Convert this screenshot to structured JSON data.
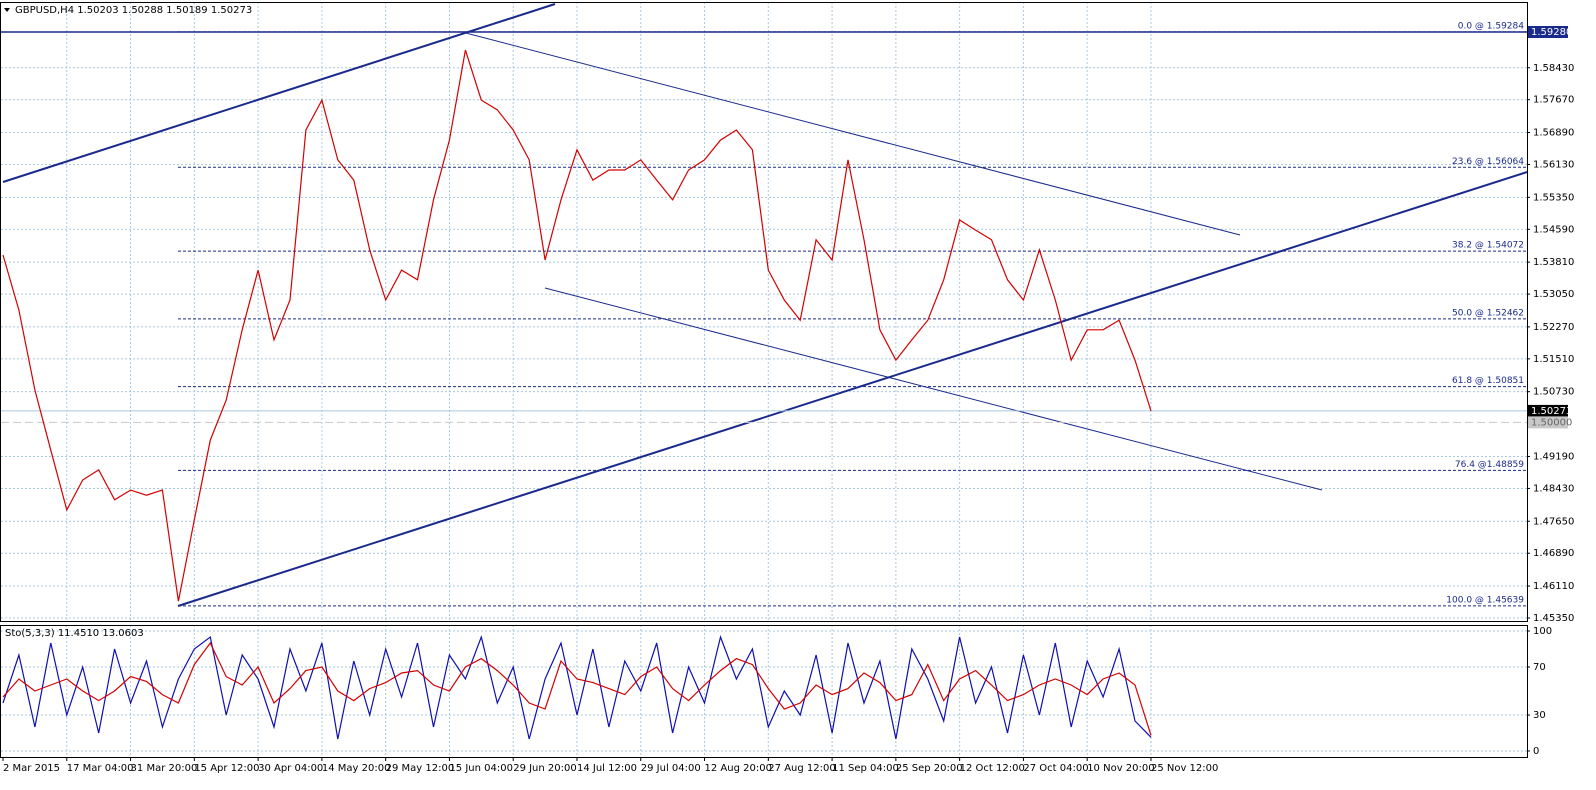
{
  "chart_data": [
    {
      "type": "line",
      "title": "GBPUSD,H4  1.50203 1.50288 1.50189 1.50273",
      "categories": [
        "2 Mar 2015",
        null,
        null,
        null,
        "17 Mar 04:00",
        null,
        null,
        null,
        "31 Mar 20:00",
        null,
        null,
        null,
        "15 Apr 12:00",
        null,
        null,
        null,
        "30 Apr 04:00",
        null,
        null,
        null,
        "14 May 20:00",
        null,
        null,
        null,
        "29 May 12:00",
        null,
        null,
        null,
        "15 Jun 04:00",
        null,
        null,
        null,
        "29 Jun 20:00",
        null,
        null,
        null,
        "14 Jul 12:00",
        null,
        null,
        null,
        "29 Jul 04:00",
        null,
        null,
        null,
        "12 Aug 20:00",
        null,
        null,
        null,
        "27 Aug 12:00",
        null,
        null,
        null,
        "11 Sep 04:00",
        null,
        null,
        null,
        "25 Sep 20:00",
        null,
        null,
        null,
        "12 Oct 12:00",
        null,
        null,
        null,
        "27 Oct 04:00",
        null,
        null,
        null,
        "10 Nov 20:00",
        null,
        null,
        null,
        "25 Nov 12:00"
      ],
      "series": [
        {
          "name": "GBPUSD",
          "color": "#d40000",
          "values": [
            1.5398,
            1.5267,
            1.5077,
            1.4934,
            1.4792,
            1.4863,
            1.4887,
            1.4816,
            1.4839,
            1.4827,
            1.4839,
            1.4575,
            1.4768,
            1.4958,
            1.5053,
            1.522,
            1.5362,
            1.5196,
            1.5291,
            1.5695,
            1.5766,
            1.5624,
            1.5576,
            1.541,
            1.5291,
            1.5362,
            1.5339,
            1.5529,
            1.5671,
            1.5885,
            1.5766,
            1.5743,
            1.5695,
            1.5624,
            1.5386,
            1.5529,
            1.5648,
            1.5576,
            1.56,
            1.56,
            1.5624,
            1.5576,
            1.5529,
            1.56,
            1.5624,
            1.5671,
            1.5695,
            1.5648,
            1.5362,
            1.5291,
            1.5243,
            1.5434,
            1.5386,
            1.5624,
            1.5434,
            1.522,
            1.5148,
            1.5196,
            1.5243,
            1.5339,
            1.5481,
            1.5457,
            1.5434,
            1.5339,
            1.5291,
            1.541,
            1.5291,
            1.5148,
            1.522,
            1.522,
            1.5243,
            1.5148,
            1.5027
          ]
        }
      ],
      "ylim": [
        1.45279,
        1.59993
      ],
      "yticks": [
        {
          "value": 1.4535,
          "label": "1.45350"
        },
        {
          "value": 1.4611,
          "label": "1.46110"
        },
        {
          "value": 1.4689,
          "label": "1.46890"
        },
        {
          "value": 1.4765,
          "label": "1.47650"
        },
        {
          "value": 1.4843,
          "label": "1.48430"
        },
        {
          "value": 1.4919,
          "label": "1.49190"
        },
        {
          "value": 1.5073,
          "label": "1.50730"
        },
        {
          "value": 1.5151,
          "label": "1.51510"
        },
        {
          "value": 1.5227,
          "label": "1.52270"
        },
        {
          "value": 1.5305,
          "label": "1.53050"
        },
        {
          "value": 1.5381,
          "label": "1.53810"
        },
        {
          "value": 1.5459,
          "label": "1.54590"
        },
        {
          "value": 1.5535,
          "label": "1.55350"
        },
        {
          "value": 1.5613,
          "label": "1.56130"
        },
        {
          "value": 1.5689,
          "label": "1.56890"
        },
        {
          "value": 1.5767,
          "label": "1.57670"
        },
        {
          "value": 1.5843,
          "label": "1.58430"
        }
      ],
      "grid": true,
      "fib_levels": [
        {
          "value": 1.59284,
          "label": "0.0 @ 1.59284"
        },
        {
          "value": 1.56064,
          "label": "23.6 @ 1.56064"
        },
        {
          "value": 1.54072,
          "label": "38.2 @ 1.54072"
        },
        {
          "value": 1.52462,
          "label": "50.0 @ 1.52462"
        },
        {
          "value": 1.50851,
          "label": "61.8 @ 1.50851"
        },
        {
          "value": 1.48859,
          "label": "76.4 @1.48859"
        },
        {
          "value": 1.45639,
          "label": "100.0 @ 1.45639"
        }
      ],
      "price_markers": [
        {
          "value": 1.5928,
          "label": "1.59280",
          "color": "#1a2a8c"
        },
        {
          "value": 1.50273,
          "label": "1.50273",
          "color": "#000000"
        },
        {
          "value": 1.5,
          "label": "1.50000",
          "color": "#c8c8c8"
        }
      ]
    },
    {
      "type": "line",
      "title": "Sto(5,3,3) 11.4510 13.0603",
      "series": [
        {
          "name": "Main",
          "color": "#1010b0",
          "values": [
            40,
            80,
            20,
            90,
            30,
            70,
            15,
            85,
            40,
            75,
            20,
            60,
            85,
            95,
            30,
            80,
            60,
            20,
            85,
            50,
            90,
            10,
            75,
            30,
            85,
            45,
            90,
            20,
            80,
            60,
            95,
            40,
            70,
            10,
            60,
            90,
            30,
            85,
            20,
            75,
            50,
            90,
            15,
            70,
            40,
            95,
            60,
            85,
            20,
            50,
            30,
            80,
            15,
            90,
            40,
            75,
            10,
            85,
            60,
            25,
            95,
            40,
            70,
            15,
            80,
            30,
            90,
            20,
            75,
            45,
            85,
            25,
            11.451
          ]
        },
        {
          "name": "Signal",
          "color": "#d40000",
          "values": [
            45,
            60,
            50,
            55,
            60,
            50,
            42,
            50,
            62,
            58,
            47,
            40,
            72,
            90,
            62,
            55,
            70,
            40,
            52,
            67,
            70,
            50,
            42,
            52,
            57,
            65,
            67,
            55,
            50,
            70,
            77,
            67,
            55,
            40,
            35,
            75,
            60,
            57,
            52,
            47,
            62,
            70,
            52,
            42,
            55,
            67,
            77,
            72,
            52,
            35,
            40,
            55,
            47,
            52,
            65,
            57,
            42,
            47,
            72,
            42,
            60,
            67,
            55,
            42,
            47,
            55,
            60,
            55,
            47,
            60,
            65,
            55,
            13.0603
          ]
        }
      ],
      "ylim": [
        -5,
        105
      ],
      "yticks": [
        0,
        30,
        70,
        100
      ],
      "grid": true
    }
  ]
}
